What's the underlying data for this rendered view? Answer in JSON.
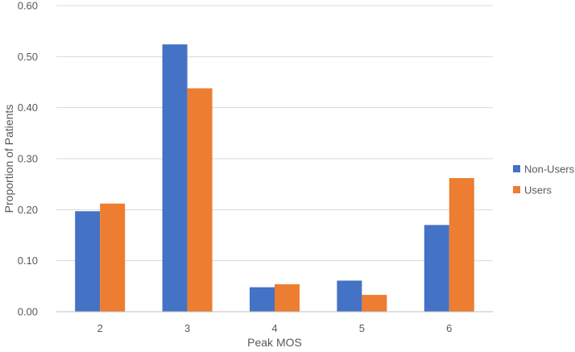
{
  "chart_data": {
    "type": "bar",
    "title": "",
    "xlabel": "Peak MOS",
    "ylabel": "Proportion of Patients",
    "categories": [
      "2",
      "3",
      "4",
      "5",
      "6"
    ],
    "ylim": [
      0,
      0.6
    ],
    "yticks": [
      "0.00",
      "0.10",
      "0.20",
      "0.30",
      "0.40",
      "0.50",
      "0.60"
    ],
    "grid": true,
    "legend_position": "right",
    "series": [
      {
        "name": "Non-Users",
        "color": "#4472c4",
        "values": [
          0.197,
          0.524,
          0.048,
          0.061,
          0.17
        ]
      },
      {
        "name": "Users",
        "color": "#ed7d31",
        "values": [
          0.212,
          0.438,
          0.054,
          0.033,
          0.262
        ]
      }
    ]
  }
}
